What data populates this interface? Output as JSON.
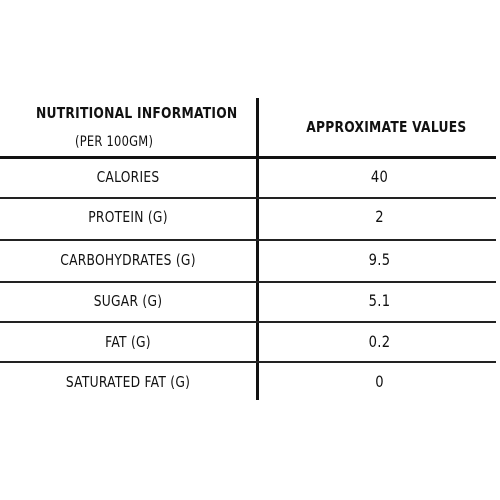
{
  "table": {
    "header": {
      "left_title": "NUTRITIONAL INFORMATION",
      "left_subtitle": "(PER 100GM)",
      "right_title": "APPROXIMATE VALUES"
    },
    "rows": [
      {
        "label": "CALORIES",
        "value": "40"
      },
      {
        "label": "PROTEIN (G)",
        "value": "2"
      },
      {
        "label": "CARBOHYDRATES (G)",
        "value": "9.5"
      },
      {
        "label": "SUGAR (G)",
        "value": "5.1"
      },
      {
        "label": "FAT (G)",
        "value": "0.2"
      },
      {
        "label": "SATURATED FAT (G)",
        "value": "0"
      }
    ]
  }
}
